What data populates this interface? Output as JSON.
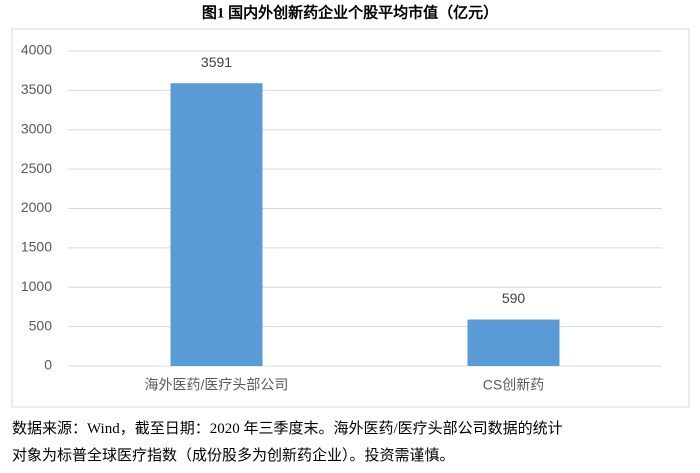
{
  "chart_data": {
    "type": "bar",
    "title": "图1  国内外创新药企业个股平均市值（亿元）",
    "categories": [
      "海外医药/医疗头部公司",
      "CS创新药"
    ],
    "values": [
      3591,
      590
    ],
    "color": "#5b9bd5",
    "ylim": [
      0,
      4000
    ],
    "yticks": [
      0,
      500,
      1000,
      1500,
      2000,
      2500,
      3000,
      3500,
      4000
    ],
    "grid": true,
    "note": [
      "数据来源：Wind，截至日期：2020 年三季度末。海外医药/医疗头部公司数据的统计",
      "对象为标普全球医疗指数（成份股多为创新药企业）。投资需谨慎。"
    ]
  }
}
